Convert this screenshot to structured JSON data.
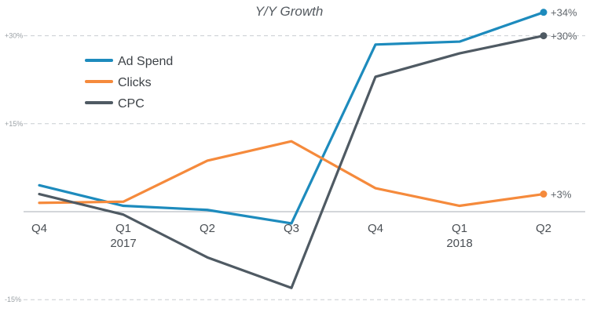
{
  "chart_data": {
    "type": "line",
    "title": "Y/Y Growth",
    "xlabel": "",
    "ylabel": "",
    "categories": [
      "Q4",
      "Q1",
      "Q2",
      "Q3",
      "Q4",
      "Q1",
      "Q2"
    ],
    "year_labels": [
      "",
      "2017",
      "",
      "",
      "",
      "2018",
      ""
    ],
    "y_ticks": [
      {
        "value": 30,
        "label": "+30%"
      },
      {
        "value": 15,
        "label": "+15%"
      },
      {
        "value": -15,
        "label": "-15%"
      }
    ],
    "ylim": [
      -15.5,
      35.5
    ],
    "grid": true,
    "legend_position": "top-left",
    "series": [
      {
        "name": "Ad Spend",
        "color": "#1d8bbd",
        "values": [
          4.5,
          1,
          0.3,
          -2,
          28.5,
          29,
          34
        ],
        "end_label": "+34%"
      },
      {
        "name": "Clicks",
        "color": "#f58a3c",
        "values": [
          1.5,
          1.7,
          8.7,
          12,
          4,
          1,
          3
        ],
        "end_label": "+3%"
      },
      {
        "name": "CPC",
        "color": "#4f5a63",
        "values": [
          3,
          -0.5,
          -7.8,
          -13,
          23,
          27,
          30
        ],
        "end_label": "+30%"
      }
    ]
  }
}
